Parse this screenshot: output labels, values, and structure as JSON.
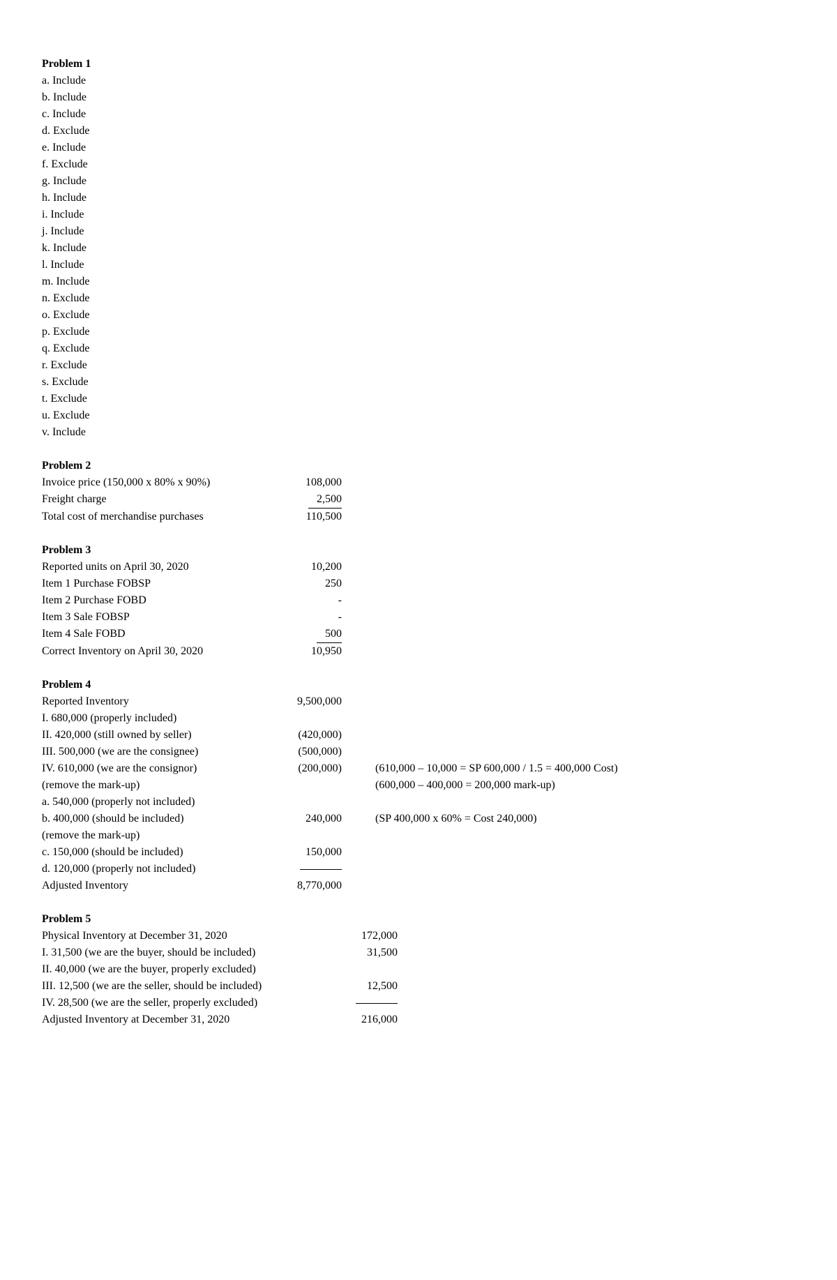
{
  "p1": {
    "title": "Problem 1",
    "items": [
      "a. Include",
      "b. Include",
      "c. Include",
      "d. Exclude",
      "e. Include",
      "f. Exclude",
      "g. Include",
      "h. Include",
      "i. Include",
      "j. Include",
      "k. Include",
      "l. Include",
      "m. Include",
      "n. Exclude",
      "o. Exclude",
      "p. Exclude",
      "q. Exclude",
      "r. Exclude",
      "s. Exclude",
      "t. Exclude",
      "u. Exclude",
      "v. Include"
    ]
  },
  "p2": {
    "title": "Problem 2",
    "rows": [
      {
        "label": "Invoice price (150,000 x 80% x 90%)",
        "value": "108,000",
        "underline": false
      },
      {
        "label": "Freight charge",
        "value": "2,500",
        "underline": true,
        "pad": 3
      },
      {
        "label": "Total cost of merchandise purchases",
        "value": "110,500",
        "underline": false
      }
    ],
    "label_w": 340,
    "val_w": 90
  },
  "p3": {
    "title": "Problem 3",
    "rows": [
      {
        "label": "Reported units on April 30, 2020",
        "value": "10,200",
        "underline": false
      },
      {
        "label": "Item 1 Purchase FOBSP",
        "value": "250",
        "underline": false
      },
      {
        "label": "Item 2 Purchase FOBD",
        "value": "-",
        "underline": false
      },
      {
        "label": "Item 3 Sale FOBSP",
        "value": "-",
        "underline": false
      },
      {
        "label": "Item 4 Sale FOBD",
        "value": "500",
        "underline": true,
        "pad": 3
      },
      {
        "label": "Correct Inventory on April 30, 2020",
        "value": "10,950",
        "underline": false
      }
    ],
    "label_w": 340,
    "val_w": 90
  },
  "p4": {
    "title": "Problem 4",
    "rows": [
      {
        "label": "Reported Inventory",
        "value": "9,500,000",
        "note": ""
      },
      {
        "label": "I. 680,000 (properly included)",
        "value": "",
        "note": ""
      },
      {
        "label": "II. 420,000 (still owned by seller)",
        "value": "(420,000)",
        "note": ""
      },
      {
        "label": "III. 500,000 (we are the consignee)",
        "value": "(500,000)",
        "note": ""
      },
      {
        "label": "IV. 610,000 (we are the consignor)",
        "value": "(200,000)",
        "note": "(610,000 – 10,000 = SP 600,000 / 1.5 = 400,000 Cost)"
      },
      {
        "label": "(remove the mark-up)",
        "value": "",
        "note": "(600,000 – 400,000 = 200,000 mark-up)"
      },
      {
        "label": "a. 540,000 (properly not included)",
        "value": "",
        "note": ""
      },
      {
        "label": "b. 400,000 (should be included)",
        "value": "240,000",
        "note": "(SP 400,000 x 60% = Cost 240,000)"
      },
      {
        "label": "(remove the mark-up)",
        "value": "",
        "note": ""
      },
      {
        "label": "c. 150,000 (should be included)",
        "value": "150,000",
        "note": ""
      },
      {
        "label": "d. 120,000 (properly not included)",
        "value": "_______",
        "note": "",
        "ruleonly": true
      },
      {
        "label": "Adjusted Inventory",
        "value": "8,770,000",
        "note": ""
      }
    ],
    "label_w": 320,
    "val_w": 110
  },
  "p5": {
    "title": "Problem 5",
    "rows": [
      {
        "label": "Physical Inventory at December 31, 2020",
        "value": "172,000"
      },
      {
        "label": "I. 31,500 (we are the buyer, should be included)",
        "value": "31,500"
      },
      {
        "label": "II. 40,000 (we are the buyer, properly excluded)",
        "value": ""
      },
      {
        "label": "III. 12,500 (we are the seller, should be included)",
        "value": "12,500"
      },
      {
        "label": "IV. 28,500 (we are the seller, properly excluded)",
        "value": "_______",
        "ruleonly": true
      },
      {
        "label": "Adjusted Inventory at December 31, 2020",
        "value": "216,000"
      }
    ],
    "label_w": 400,
    "val_w": 110
  }
}
